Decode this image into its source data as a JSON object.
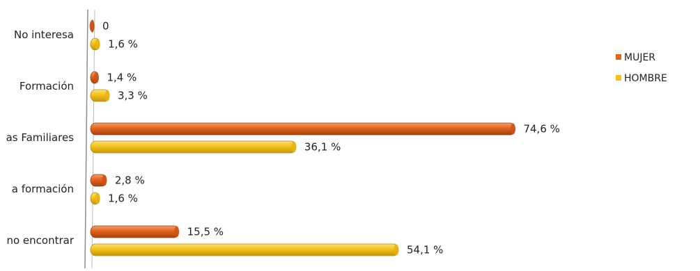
{
  "chart_data": {
    "type": "bar",
    "orientation": "horizontal",
    "categories": [
      "No interesa",
      "Formación",
      "as Familiares",
      "a formación",
      "no encontrar"
    ],
    "series": [
      {
        "name": "MUJER",
        "color": "#E0631E",
        "values": [
          0,
          1.4,
          74.6,
          2.8,
          15.5
        ],
        "labels": [
          "0",
          "1,4 %",
          "74,6 %",
          "2,8 %",
          "15,5 %"
        ]
      },
      {
        "name": "HOMBRE",
        "color": "#F2C21B",
        "values": [
          1.6,
          3.3,
          36.1,
          1.6,
          54.1
        ],
        "labels": [
          "1,6 %",
          "3,3 %",
          "36,1 %",
          "1,6 %",
          "54,1 %"
        ]
      }
    ],
    "xlim": [
      0,
      100
    ],
    "grid": false,
    "legend_position": "right"
  }
}
